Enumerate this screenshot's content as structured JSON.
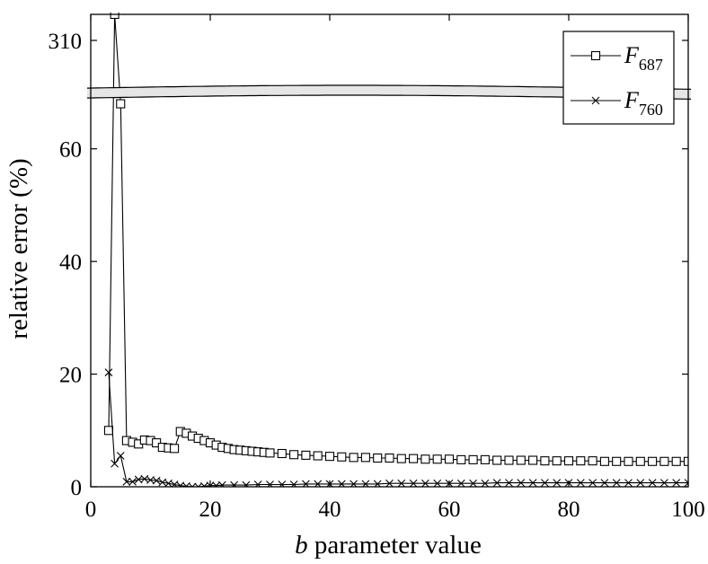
{
  "chart_data": {
    "type": "line",
    "xlabel_var": "b",
    "xlabel_rest": " parameter value",
    "ylabel": "relative error (%)",
    "xlim": [
      0,
      100
    ],
    "xticks": [
      "0",
      "20",
      "40",
      "60",
      "80",
      "100"
    ],
    "ylim_lower": [
      0,
      70
    ],
    "yticks_lower": [
      "0",
      "20",
      "40",
      "60"
    ],
    "ytick_upper": "310",
    "axis_break": true,
    "legend_position": "top-right",
    "series": [
      {
        "name": "F",
        "subscript": "687",
        "marker": "square",
        "points": [
          [
            3,
            10.0
          ],
          [
            4,
            311.0
          ],
          [
            5,
            68.0
          ],
          [
            6,
            8.2
          ],
          [
            7,
            7.9
          ],
          [
            8,
            7.6
          ],
          [
            9,
            8.3
          ],
          [
            10,
            8.2
          ],
          [
            11,
            7.8
          ],
          [
            12,
            7.0
          ],
          [
            13,
            6.9
          ],
          [
            14,
            6.8
          ],
          [
            15,
            9.8
          ],
          [
            16,
            9.5
          ],
          [
            17,
            9.0
          ],
          [
            18,
            8.6
          ],
          [
            19,
            8.2
          ],
          [
            20,
            7.8
          ],
          [
            21,
            7.4
          ],
          [
            22,
            7.0
          ],
          [
            23,
            6.8
          ],
          [
            24,
            6.6
          ],
          [
            25,
            6.5
          ],
          [
            26,
            6.4
          ],
          [
            27,
            6.3
          ],
          [
            28,
            6.2
          ],
          [
            29,
            6.1
          ],
          [
            30,
            6.0
          ],
          [
            32,
            5.9
          ],
          [
            34,
            5.7
          ],
          [
            36,
            5.6
          ],
          [
            38,
            5.5
          ],
          [
            40,
            5.4
          ],
          [
            42,
            5.3
          ],
          [
            44,
            5.2
          ],
          [
            46,
            5.2
          ],
          [
            48,
            5.1
          ],
          [
            50,
            5.1
          ],
          [
            52,
            5.0
          ],
          [
            54,
            5.0
          ],
          [
            56,
            4.9
          ],
          [
            58,
            4.9
          ],
          [
            60,
            4.9
          ],
          [
            62,
            4.8
          ],
          [
            64,
            4.8
          ],
          [
            66,
            4.8
          ],
          [
            68,
            4.7
          ],
          [
            70,
            4.7
          ],
          [
            72,
            4.7
          ],
          [
            74,
            4.7
          ],
          [
            76,
            4.6
          ],
          [
            78,
            4.6
          ],
          [
            80,
            4.6
          ],
          [
            82,
            4.6
          ],
          [
            84,
            4.6
          ],
          [
            86,
            4.5
          ],
          [
            88,
            4.5
          ],
          [
            90,
            4.5
          ],
          [
            92,
            4.5
          ],
          [
            94,
            4.5
          ],
          [
            96,
            4.5
          ],
          [
            98,
            4.5
          ],
          [
            100,
            4.5
          ]
        ]
      },
      {
        "name": "F",
        "subscript": "760",
        "marker": "x",
        "points": [
          [
            3,
            20.3
          ],
          [
            4,
            4.1
          ],
          [
            5,
            5.5
          ],
          [
            6,
            0.9
          ],
          [
            7,
            0.9
          ],
          [
            8,
            1.3
          ],
          [
            9,
            1.4
          ],
          [
            10,
            1.2
          ],
          [
            11,
            1.1
          ],
          [
            12,
            0.8
          ],
          [
            13,
            0.6
          ],
          [
            14,
            0.4
          ],
          [
            15,
            0.2
          ],
          [
            16,
            0.1
          ],
          [
            17,
            0.0
          ],
          [
            18,
            0.0
          ],
          [
            19,
            0.1
          ],
          [
            20,
            0.2
          ],
          [
            21,
            0.2
          ],
          [
            22,
            0.3
          ],
          [
            24,
            0.3
          ],
          [
            26,
            0.3
          ],
          [
            28,
            0.4
          ],
          [
            30,
            0.4
          ],
          [
            32,
            0.4
          ],
          [
            34,
            0.4
          ],
          [
            36,
            0.5
          ],
          [
            38,
            0.5
          ],
          [
            40,
            0.5
          ],
          [
            42,
            0.5
          ],
          [
            44,
            0.5
          ],
          [
            46,
            0.5
          ],
          [
            48,
            0.5
          ],
          [
            50,
            0.6
          ],
          [
            52,
            0.6
          ],
          [
            54,
            0.6
          ],
          [
            56,
            0.6
          ],
          [
            58,
            0.6
          ],
          [
            60,
            0.6
          ],
          [
            62,
            0.6
          ],
          [
            64,
            0.6
          ],
          [
            66,
            0.6
          ],
          [
            68,
            0.7
          ],
          [
            70,
            0.7
          ],
          [
            72,
            0.7
          ],
          [
            74,
            0.7
          ],
          [
            76,
            0.7
          ],
          [
            78,
            0.7
          ],
          [
            80,
            0.7
          ],
          [
            82,
            0.7
          ],
          [
            84,
            0.7
          ],
          [
            86,
            0.7
          ],
          [
            88,
            0.7
          ],
          [
            90,
            0.7
          ],
          [
            92,
            0.7
          ],
          [
            94,
            0.7
          ],
          [
            96,
            0.7
          ],
          [
            98,
            0.7
          ],
          [
            100,
            0.7
          ]
        ]
      }
    ]
  }
}
